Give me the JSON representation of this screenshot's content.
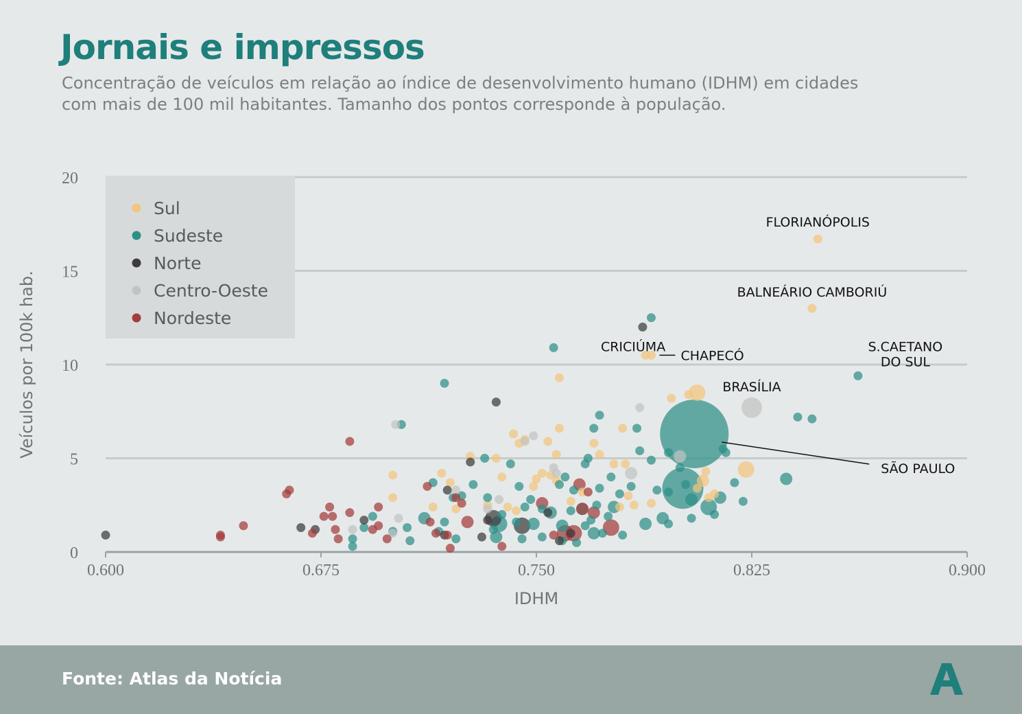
{
  "header": {
    "title": "Jornais e impressos",
    "subtitle": "Concentração de veículos em relação ao índice de desenvolvimento humano (IDHM) em cidades com mais de 100 mil habitantes. Tamanho dos pontos corresponde à população."
  },
  "footer": {
    "source": "Fonte: Atlas da Notícia",
    "logo_letter": "A"
  },
  "colors": {
    "background": "#e6e9ea",
    "title": "#1e7f7b",
    "Sul": "#f3c57d",
    "Sudeste": "#2e8f88",
    "Norte": "#3c3c3c",
    "Centro-Oeste": "#c2c4c4",
    "Nordeste": "#a33c3a",
    "footer": "#98a6a4"
  },
  "chart_data": {
    "type": "scatter",
    "xlabel": "IDHM",
    "ylabel": "Veículos por 100k hab.",
    "xlim": [
      0.6,
      0.9
    ],
    "ylim": [
      0,
      20
    ],
    "xticks": [
      "0.600",
      "0.675",
      "0.750",
      "0.825",
      "0.900"
    ],
    "yticks": [
      "0",
      "5",
      "10",
      "15",
      "20"
    ],
    "grid": "horizontal",
    "legend": "top-left",
    "size_encoding": "população",
    "series": [
      {
        "name": "Sul",
        "points": [
          [
            0.848,
            16.7,
            1
          ],
          [
            0.846,
            13.0,
            1
          ],
          [
            0.788,
            10.5,
            1
          ],
          [
            0.79,
            10.5,
            1
          ],
          [
            0.758,
            9.3,
            1
          ],
          [
            0.797,
            8.2,
            1
          ],
          [
            0.803,
            8.4,
            1
          ],
          [
            0.806,
            8.5,
            3
          ],
          [
            0.823,
            4.4,
            3
          ],
          [
            0.758,
            6.6,
            1
          ],
          [
            0.757,
            5.2,
            1
          ],
          [
            0.754,
            5.9,
            1
          ],
          [
            0.755,
            4.1,
            1
          ],
          [
            0.744,
            5.8,
            1
          ],
          [
            0.746,
            6.0,
            1
          ],
          [
            0.742,
            6.3,
            1
          ],
          [
            0.736,
            5.0,
            1
          ],
          [
            0.738,
            4.0,
            1
          ],
          [
            0.727,
            5.1,
            1
          ],
          [
            0.72,
            3.7,
            1
          ],
          [
            0.717,
            4.2,
            1
          ],
          [
            0.7,
            4.1,
            1
          ],
          [
            0.7,
            2.9,
            1
          ],
          [
            0.714,
            2.4,
            1
          ],
          [
            0.722,
            2.3,
            1
          ],
          [
            0.733,
            2.5,
            1
          ],
          [
            0.74,
            2.4,
            1
          ],
          [
            0.743,
            2.2,
            1
          ],
          [
            0.757,
            3.8,
            1
          ],
          [
            0.75,
            3.9,
            1
          ],
          [
            0.749,
            3.5,
            1
          ],
          [
            0.752,
            4.2,
            1
          ],
          [
            0.762,
            2.7,
            1
          ],
          [
            0.766,
            3.2,
            1
          ],
          [
            0.77,
            5.8,
            1
          ],
          [
            0.772,
            5.2,
            1
          ],
          [
            0.777,
            4.7,
            1
          ],
          [
            0.781,
            4.7,
            1
          ],
          [
            0.78,
            6.6,
            1
          ],
          [
            0.782,
            3.0,
            1
          ],
          [
            0.784,
            2.5,
            1
          ],
          [
            0.808,
            3.8,
            2
          ],
          [
            0.809,
            4.3,
            1
          ],
          [
            0.81,
            2.9,
            1
          ],
          [
            0.79,
            2.6,
            1
          ],
          [
            0.779,
            2.4,
            1
          ],
          [
            0.812,
            3.1,
            1
          ],
          [
            0.806,
            3.4,
            1
          ]
        ]
      },
      {
        "name": "Sudeste",
        "points": [
          [
            0.862,
            9.4,
            1
          ],
          [
            0.79,
            12.5,
            1
          ],
          [
            0.756,
            10.9,
            1
          ],
          [
            0.718,
            9.0,
            1
          ],
          [
            0.805,
            6.3,
            14
          ],
          [
            0.841,
            7.2,
            1
          ],
          [
            0.846,
            7.1,
            1
          ],
          [
            0.801,
            3.4,
            6
          ],
          [
            0.81,
            2.4,
            3
          ],
          [
            0.804,
            2.8,
            2
          ],
          [
            0.802,
            3.6,
            1
          ],
          [
            0.815,
            5.5,
            1
          ],
          [
            0.816,
            5.3,
            1
          ],
          [
            0.814,
            2.9,
            2
          ],
          [
            0.822,
            2.7,
            1
          ],
          [
            0.819,
            3.7,
            1
          ],
          [
            0.837,
            3.9,
            2
          ],
          [
            0.796,
            5.3,
            1
          ],
          [
            0.79,
            4.9,
            1
          ],
          [
            0.796,
            3.2,
            1
          ],
          [
            0.8,
            4.5,
            1
          ],
          [
            0.792,
            3.3,
            1
          ],
          [
            0.794,
            1.8,
            2
          ],
          [
            0.788,
            1.5,
            2
          ],
          [
            0.785,
            6.6,
            1
          ],
          [
            0.786,
            5.4,
            1
          ],
          [
            0.783,
            3.5,
            1
          ],
          [
            0.779,
            3.1,
            1
          ],
          [
            0.777,
            2.4,
            2
          ],
          [
            0.776,
            4.0,
            1
          ],
          [
            0.775,
            1.9,
            1
          ],
          [
            0.772,
            7.3,
            1
          ],
          [
            0.77,
            6.6,
            1
          ],
          [
            0.768,
            5.0,
            1
          ],
          [
            0.772,
            3.4,
            1
          ],
          [
            0.771,
            2.5,
            1
          ],
          [
            0.769,
            1.7,
            1
          ],
          [
            0.767,
            4.7,
            1
          ],
          [
            0.766,
            2.3,
            2
          ],
          [
            0.763,
            3.3,
            1
          ],
          [
            0.762,
            2.2,
            1
          ],
          [
            0.76,
            4.0,
            1
          ],
          [
            0.758,
            3.6,
            1
          ],
          [
            0.755,
            2.1,
            2
          ],
          [
            0.752,
            2.3,
            1
          ],
          [
            0.749,
            1.5,
            2
          ],
          [
            0.748,
            2.8,
            1
          ],
          [
            0.746,
            2.4,
            1
          ],
          [
            0.744,
            3.5,
            1
          ],
          [
            0.738,
            2.0,
            1
          ],
          [
            0.737,
            1.5,
            3
          ],
          [
            0.735,
            1.2,
            1
          ],
          [
            0.733,
            2.9,
            1
          ],
          [
            0.732,
            5.0,
            1
          ],
          [
            0.728,
            3.6,
            1
          ],
          [
            0.724,
            3.0,
            1
          ],
          [
            0.721,
            2.9,
            1
          ],
          [
            0.718,
            1.6,
            1
          ],
          [
            0.716,
            1.1,
            1
          ],
          [
            0.714,
            3.7,
            1
          ],
          [
            0.711,
            1.8,
            2
          ],
          [
            0.705,
            1.3,
            1
          ],
          [
            0.703,
            6.8,
            1
          ],
          [
            0.7,
            1.1,
            1
          ],
          [
            0.693,
            1.9,
            1
          ],
          [
            0.69,
            1.3,
            1
          ],
          [
            0.686,
            0.7,
            1
          ],
          [
            0.686,
            0.3,
            1
          ],
          [
            0.736,
            0.8,
            2
          ],
          [
            0.745,
            0.7,
            1
          ],
          [
            0.759,
            0.6,
            1
          ],
          [
            0.764,
            0.5,
            1
          ],
          [
            0.77,
            1.0,
            2
          ],
          [
            0.767,
            1.4,
            1
          ],
          [
            0.759,
            1.4,
            2
          ],
          [
            0.773,
            1.0,
            1
          ],
          [
            0.752,
            0.8,
            1
          ],
          [
            0.706,
            0.6,
            1
          ],
          [
            0.722,
            0.7,
            1
          ],
          [
            0.804,
            1.8,
            1
          ],
          [
            0.796,
            1.5,
            1
          ],
          [
            0.812,
            2.0,
            1
          ],
          [
            0.743,
            1.6,
            1
          ],
          [
            0.78,
            0.9,
            1
          ],
          [
            0.741,
            4.7,
            1
          ]
        ]
      },
      {
        "name": "Norte",
        "points": [
          [
            0.787,
            12.0,
            1
          ],
          [
            0.736,
            8.0,
            1
          ],
          [
            0.6,
            0.9,
            1
          ],
          [
            0.668,
            1.3,
            1
          ],
          [
            0.673,
            1.2,
            1
          ],
          [
            0.69,
            1.7,
            1
          ],
          [
            0.719,
            3.3,
            1
          ],
          [
            0.727,
            4.8,
            1
          ],
          [
            0.733,
            1.7,
            1
          ],
          [
            0.735,
            1.8,
            3
          ],
          [
            0.745,
            1.4,
            3
          ],
          [
            0.754,
            2.1,
            1
          ],
          [
            0.758,
            0.6,
            1
          ],
          [
            0.762,
            1.0,
            1
          ],
          [
            0.731,
            0.8,
            1
          ],
          [
            0.718,
            0.9,
            1
          ]
        ]
      },
      {
        "name": "Centro-Oeste",
        "points": [
          [
            0.825,
            7.7,
            4
          ],
          [
            0.786,
            7.7,
            1
          ],
          [
            0.701,
            6.8,
            1
          ],
          [
            0.749,
            6.2,
            1
          ],
          [
            0.746,
            5.9,
            1
          ],
          [
            0.756,
            4.5,
            1
          ],
          [
            0.757,
            4.2,
            1
          ],
          [
            0.783,
            4.2,
            2
          ],
          [
            0.8,
            5.1,
            2
          ],
          [
            0.722,
            3.3,
            1
          ],
          [
            0.733,
            2.3,
            1
          ],
          [
            0.702,
            1.8,
            1
          ],
          [
            0.686,
            1.2,
            1
          ],
          [
            0.7,
            1.0,
            1
          ],
          [
            0.737,
            2.8,
            1
          ]
        ]
      },
      {
        "name": "Nordeste",
        "points": [
          [
            0.685,
            5.9,
            1
          ],
          [
            0.664,
            3.3,
            1
          ],
          [
            0.663,
            3.1,
            1
          ],
          [
            0.64,
            0.9,
            1
          ],
          [
            0.64,
            0.8,
            1
          ],
          [
            0.648,
            1.4,
            1
          ],
          [
            0.672,
            1.0,
            1
          ],
          [
            0.676,
            1.9,
            1
          ],
          [
            0.678,
            2.4,
            1
          ],
          [
            0.679,
            1.9,
            1
          ],
          [
            0.68,
            1.2,
            1
          ],
          [
            0.681,
            0.7,
            1
          ],
          [
            0.685,
            2.1,
            1
          ],
          [
            0.693,
            1.2,
            1
          ],
          [
            0.695,
            2.4,
            1
          ],
          [
            0.698,
            0.7,
            1
          ],
          [
            0.712,
            3.5,
            1
          ],
          [
            0.713,
            1.6,
            1
          ],
          [
            0.715,
            1.0,
            1
          ],
          [
            0.719,
            0.9,
            1
          ],
          [
            0.72,
            0.2,
            1
          ],
          [
            0.722,
            2.9,
            1
          ],
          [
            0.724,
            2.6,
            1
          ],
          [
            0.726,
            1.6,
            2
          ],
          [
            0.738,
            0.3,
            1
          ],
          [
            0.752,
            2.6,
            2
          ],
          [
            0.76,
            1.0,
            3
          ],
          [
            0.763,
            1.0,
            3
          ],
          [
            0.765,
            3.6,
            2
          ],
          [
            0.768,
            3.2,
            1
          ],
          [
            0.766,
            2.3,
            2
          ],
          [
            0.77,
            2.1,
            2
          ],
          [
            0.776,
            1.3,
            3
          ],
          [
            0.756,
            0.9,
            1
          ],
          [
            0.695,
            1.4,
            1
          ]
        ]
      }
    ],
    "annotations": [
      {
        "text": "FLORIANÓPOLIS",
        "x": 0.848,
        "y": 16.7
      },
      {
        "text": "BALNEÁRIO CAMBORIÚ",
        "x": 0.846,
        "y": 13.0
      },
      {
        "text": "CRICIÚMA",
        "x": 0.788,
        "y": 10.5
      },
      {
        "text": "CHAPECÓ",
        "x": 0.79,
        "y": 10.5
      },
      {
        "text": "S.CAETANO DO SUL",
        "x": 0.862,
        "y": 9.4
      },
      {
        "text": "BRASÍLIA",
        "x": 0.825,
        "y": 7.7
      },
      {
        "text": "SÃO PAULO",
        "x": 0.805,
        "y": 6.3
      }
    ]
  }
}
